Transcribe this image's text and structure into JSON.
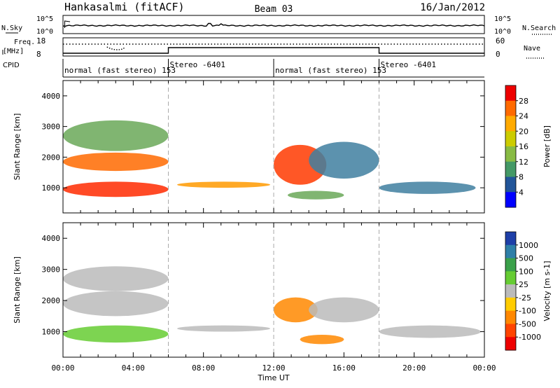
{
  "header": {
    "station": "Hankasalmi (fitACF)",
    "beam": "Beam 03",
    "date": "16/Jan/2012"
  },
  "top_panels": {
    "nsky_label": "N.Sky",
    "nsearch_label": "N.Search",
    "noise_ticks": [
      "10^5",
      "10^0"
    ],
    "freq_label": "Freq.",
    "freq_unit": "[MHz]",
    "freq_ticks": [
      "18",
      "8"
    ],
    "nave_label": "Nave",
    "nave_ticks": [
      "60",
      "0"
    ],
    "cpid_label": "CPID",
    "cpid_segments": [
      {
        "start": 0,
        "end": 6,
        "label": "normal (fast stereo) 153"
      },
      {
        "start": 6,
        "end": 12,
        "label": "Stereo -6401"
      },
      {
        "start": 12,
        "end": 18,
        "label": "normal (fast stereo) 153"
      },
      {
        "start": 18,
        "end": 24,
        "label": "Stereo -6401"
      }
    ]
  },
  "chart_data": [
    {
      "type": "heatmap",
      "name": "power-panel",
      "ylabel": "Slant Range [km]",
      "yticks": [
        "4000",
        "3000",
        "2000",
        "1000"
      ],
      "ylim": [
        180,
        4500
      ],
      "xlim": [
        0,
        24
      ],
      "colorbar_label": "Power [dB]",
      "colorbar_ticks": [
        "28",
        "24",
        "20",
        "16",
        "12",
        "8",
        "4"
      ],
      "colorbar_colors": [
        "#ee0000",
        "#ff6a00",
        "#ffaa00",
        "#cccc00",
        "#88bb44",
        "#449966",
        "#225599",
        "#0000ff"
      ],
      "blobs": [
        {
          "t0": 0,
          "t1": 6,
          "r0": 700,
          "r1": 1200,
          "color": "#ff2a00"
        },
        {
          "t0": 0,
          "t1": 6,
          "r0": 1550,
          "r1": 2150,
          "color": "#ff6a00"
        },
        {
          "t0": 0,
          "t1": 6,
          "r0": 2200,
          "r1": 3200,
          "color": "#6aa858"
        },
        {
          "t0": 6.5,
          "t1": 11.8,
          "r0": 1000,
          "r1": 1200,
          "color": "#ff9a00"
        },
        {
          "t0": 12,
          "t1": 15,
          "r0": 1100,
          "r1": 2400,
          "color": "#ff3a00"
        },
        {
          "t0": 14,
          "t1": 18,
          "r0": 1300,
          "r1": 2500,
          "color": "#3f7fa0"
        },
        {
          "t0": 12.8,
          "t1": 16,
          "r0": 620,
          "r1": 900,
          "color": "#6aa858"
        },
        {
          "t0": 18,
          "t1": 23.5,
          "r0": 800,
          "r1": 1200,
          "color": "#3f7fa0"
        }
      ]
    },
    {
      "type": "heatmap",
      "name": "velocity-panel",
      "ylabel": "Slant Range [km]",
      "yticks": [
        "4000",
        "3000",
        "2000",
        "1000"
      ],
      "ylim": [
        180,
        4500
      ],
      "xlim": [
        0,
        24
      ],
      "xticks": [
        "00:00",
        "04:00",
        "08:00",
        "12:00",
        "16:00",
        "20:00",
        "00:00"
      ],
      "xlabel": "Time UT",
      "colorbar_label": "Velocity [m s-1]",
      "colorbar_ticks": [
        "1000",
        "500",
        "100",
        "25",
        "-25",
        "-100",
        "-500",
        "-1000"
      ],
      "colorbar_colors": [
        "#1e3fa8",
        "#2e7fa8",
        "#3aa04a",
        "#66cc33",
        "#bbbbbb",
        "#ffcc00",
        "#ff8800",
        "#ff4400",
        "#ee0000"
      ],
      "blobs": [
        {
          "t0": 0,
          "t1": 6,
          "r0": 650,
          "r1": 1200,
          "color": "#66cc33"
        },
        {
          "t0": 0,
          "t1": 6,
          "r0": 1500,
          "r1": 2300,
          "color": "#bbbbbb"
        },
        {
          "t0": 0,
          "t1": 6,
          "r0": 2300,
          "r1": 3100,
          "color": "#bbbbbb"
        },
        {
          "t0": 6.5,
          "t1": 11.8,
          "r0": 1000,
          "r1": 1200,
          "color": "#bbbbbb"
        },
        {
          "t0": 12,
          "t1": 14.5,
          "r0": 1300,
          "r1": 2100,
          "color": "#ff8800"
        },
        {
          "t0": 14,
          "t1": 18,
          "r0": 1300,
          "r1": 2100,
          "color": "#bbbbbb"
        },
        {
          "t0": 13.5,
          "t1": 16,
          "r0": 600,
          "r1": 900,
          "color": "#ff8800"
        },
        {
          "t0": 18,
          "t1": 23.8,
          "r0": 800,
          "r1": 1200,
          "color": "#bbbbbb"
        }
      ]
    }
  ]
}
